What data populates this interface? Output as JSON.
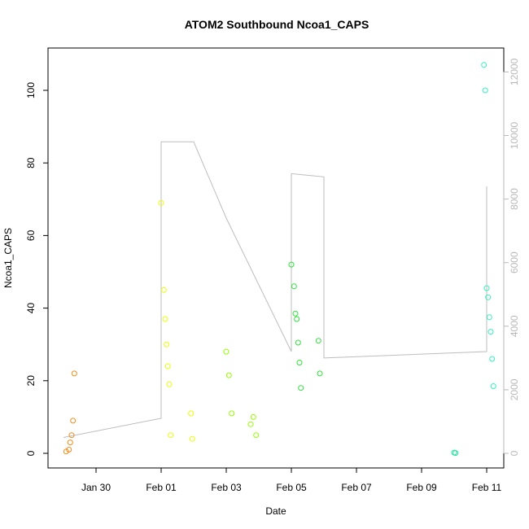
{
  "chart_data": {
    "type": "scatter",
    "title": "ATOM2 Southbound Ncoa1_CAPS",
    "xlabel": "Date",
    "ylabel": "Ncoa1_CAPS",
    "x_ticks": [
      "Jan 30",
      "Feb 01",
      "Feb 03",
      "Feb 05",
      "Feb 07",
      "Feb 09",
      "Feb 11"
    ],
    "y_ticks": [
      0,
      20,
      40,
      60,
      80,
      100
    ],
    "y2_ticks": [
      0,
      2000,
      4000,
      6000,
      8000,
      10000,
      12000
    ],
    "ylim": [
      0,
      110
    ],
    "y2lim": [
      0,
      12500
    ],
    "grid": false,
    "colors": {
      "axis": "#000000",
      "secondary_axis": "#b8b8b8",
      "line": "#bdbdbd"
    },
    "series": [
      {
        "color": "#f08c1a",
        "x": [
          "Jan 29 02:00",
          "Jan 29 04:00",
          "Jan 29 05:00",
          "Jan 29 06:00",
          "Jan 29 07:00",
          "Jan 29 08:00"
        ],
        "values": [
          0.5,
          1.0,
          3.0,
          5.0,
          9.0,
          22.0
        ]
      },
      {
        "color": "#eaff00",
        "x": [
          "Feb 01 00:00",
          "Feb 01 02:00",
          "Feb 01 03:00",
          "Feb 01 04:00",
          "Feb 01 05:00",
          "Feb 01 06:00",
          "Feb 01 07:00",
          "Feb 01 22:00",
          "Feb 01 23:00"
        ],
        "values": [
          69.0,
          45.0,
          37.0,
          30.0,
          24.0,
          19.0,
          5.0,
          11.0,
          4.0
        ]
      },
      {
        "color": "#96ff00",
        "x": [
          "Feb 03 00:00",
          "Feb 03 02:00",
          "Feb 03 04:00",
          "Feb 03 18:00",
          "Feb 03 20:00",
          "Feb 03 22:00"
        ],
        "values": [
          28.0,
          21.5,
          11.0,
          8.0,
          10.0,
          5.0
        ]
      },
      {
        "color": "#2de43a",
        "x": [
          "Feb 05 00:00",
          "Feb 05 02:00",
          "Feb 05 03:00",
          "Feb 05 04:00",
          "Feb 05 05:00",
          "Feb 05 06:00",
          "Feb 05 07:00",
          "Feb 05 20:00",
          "Feb 05 21:00"
        ],
        "values": [
          52.0,
          46.0,
          38.5,
          37.0,
          30.5,
          25.0,
          18.0,
          31.0,
          22.0
        ]
      },
      {
        "color": "#27e0a0",
        "x": [
          "Feb 10 00:00",
          "Feb 10 01:00"
        ],
        "values": [
          0.2,
          0.1
        ]
      },
      {
        "color": "#33f0c0",
        "x": [
          "Feb 10 22:00",
          "Feb 10 23:00",
          "Feb 11 00:00",
          "Feb 11 01:00",
          "Feb 11 02:00",
          "Feb 11 03:00",
          "Feb 11 04:00",
          "Feb 11 05:00"
        ],
        "values": [
          107.0,
          100.0,
          45.5,
          43.0,
          37.5,
          33.5,
          26.0,
          18.5
        ]
      }
    ],
    "secondary_line": {
      "axis": "right",
      "color": "#bdbdbd",
      "x": [
        "Jan 29",
        "Feb 01",
        "Feb 01",
        "Feb 02",
        "Feb 03",
        "Feb 05",
        "Feb 05",
        "Feb 06",
        "Feb 06",
        "Feb 11",
        "Feb 11"
      ],
      "values": [
        500,
        1100,
        9800,
        9800,
        7400,
        3200,
        8800,
        8700,
        3000,
        3200,
        8400
      ]
    }
  }
}
